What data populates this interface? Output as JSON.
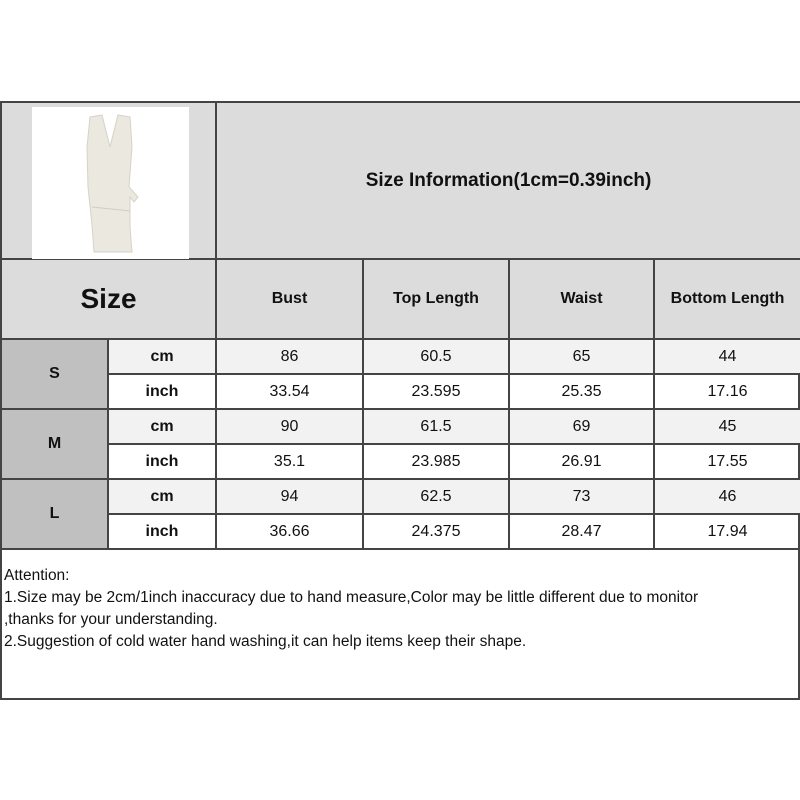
{
  "title": "Size Information(1cm=0.39inch)",
  "product_image": "white-sleeveless-wrap-top-and-skirt-set",
  "size_header": "Size",
  "columns": [
    "Bust",
    "Top Length",
    "Waist",
    "Bottom Length"
  ],
  "sizes": [
    {
      "label": "S",
      "rows": [
        {
          "unit": "cm",
          "values": [
            "86",
            "60.5",
            "65",
            "44"
          ]
        },
        {
          "unit": "inch",
          "values": [
            "33.54",
            "23.595",
            "25.35",
            "17.16"
          ]
        }
      ]
    },
    {
      "label": "M",
      "rows": [
        {
          "unit": "cm",
          "values": [
            "90",
            "61.5",
            "69",
            "45"
          ]
        },
        {
          "unit": "inch",
          "values": [
            "35.1",
            "23.985",
            "26.91",
            "17.55"
          ]
        }
      ]
    },
    {
      "label": "L",
      "rows": [
        {
          "unit": "cm",
          "values": [
            "94",
            "62.5",
            "73",
            "46"
          ]
        },
        {
          "unit": "inch",
          "values": [
            "36.66",
            "24.375",
            "28.47",
            "17.94"
          ]
        }
      ]
    }
  ],
  "notes": [
    "Attention:",
    "1.Size may be 2cm/1inch inaccuracy due to hand measure,Color may be little different due to monitor",
    ",thanks for your understanding.",
    "2.Suggestion of cold water hand washing,it can help items keep their shape."
  ]
}
